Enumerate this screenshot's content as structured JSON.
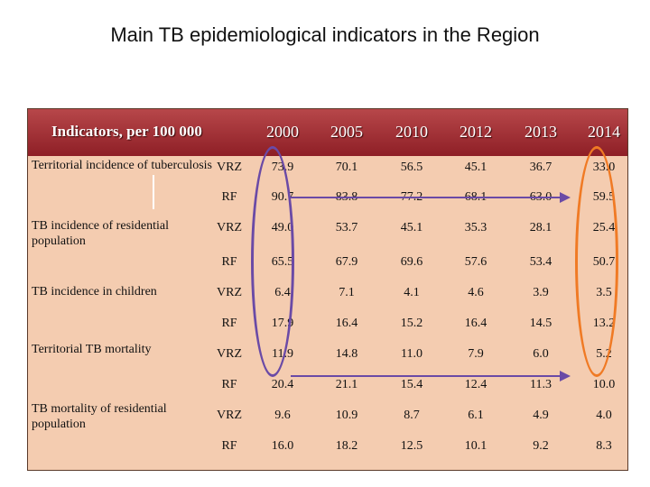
{
  "title": "Main TB epidemiological indicators in the Region",
  "table": {
    "header_label": "Indicators, per 100 000",
    "years": [
      "2000",
      "2005",
      "2010",
      "2012",
      "2013",
      "2014"
    ],
    "indicators": [
      {
        "name": "Territorial incidence of tuberculosis",
        "rows": [
          {
            "region": "VRZ",
            "values": [
              "73.9",
              "70.1",
              "56.5",
              "45.1",
              "36.7",
              "33.0"
            ]
          },
          {
            "region": "RF",
            "values": [
              "90.7",
              "83.8",
              "77.2",
              "68.1",
              "63.0",
              "59.5"
            ]
          }
        ]
      },
      {
        "name": "TB incidence of residential population",
        "rows": [
          {
            "region": "VRZ",
            "values": [
              "49.0",
              "53.7",
              "45.1",
              "35.3",
              "28.1",
              "25.4"
            ]
          },
          {
            "region": "RF",
            "values": [
              "65.5",
              "67.9",
              "69.6",
              "57.6",
              "53.4",
              "50.7"
            ]
          }
        ]
      },
      {
        "name": "TB incidence in children",
        "rows": [
          {
            "region": "VRZ",
            "values": [
              "6.4",
              "7.1",
              "4.1",
              "4.6",
              "3.9",
              "3.5"
            ]
          },
          {
            "region": "RF",
            "values": [
              "17.9",
              "16.4",
              "15.2",
              "16.4",
              "14.5",
              "13.2"
            ]
          }
        ]
      },
      {
        "name": "Territorial TB mortality",
        "rows": [
          {
            "region": "VRZ",
            "values": [
              "11.9",
              "14.8",
              "11.0",
              "7.9",
              "6.0",
              "5.2"
            ]
          },
          {
            "region": "RF",
            "values": [
              "20.4",
              "21.1",
              "15.4",
              "12.4",
              "11.3",
              "10.0"
            ]
          }
        ]
      },
      {
        "name": "TB mortality of residential population",
        "rows": [
          {
            "region": "VRZ",
            "values": [
              "9.6",
              "10.9",
              "8.7",
              "6.1",
              "4.9",
              "4.0"
            ]
          },
          {
            "region": "RF",
            "values": [
              "16.0",
              "18.2",
              "12.5",
              "10.1",
              "9.2",
              "8.3"
            ]
          }
        ]
      }
    ]
  },
  "annotation_colors": {
    "start_ring": "#6a4aa6",
    "end_ring": "#f07a24",
    "header": "#8e1f26",
    "panel": "#f4ccb0"
  }
}
